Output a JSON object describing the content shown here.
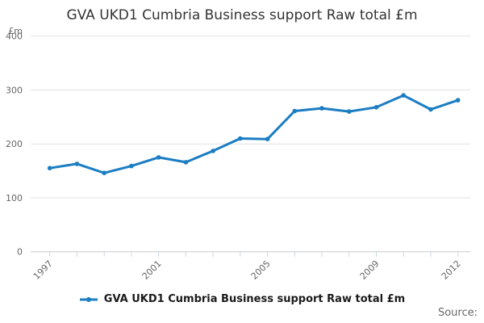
{
  "title": "GVA UKD1 Cumbria Business support Raw total £m",
  "y_axis_unit_label": "£m",
  "legend": {
    "label": "GVA UKD1 Cumbria Business support Raw total £m"
  },
  "source_label": "Source:",
  "colors": {
    "line": "#1b7dc2",
    "grid": "#e2e2e2",
    "axis": "#d0d0d0",
    "tick": "#c9d7e2",
    "text_muted": "#666666",
    "title_text": "#333333",
    "legend_text": "#1a1a1a"
  },
  "chart_data": {
    "type": "line",
    "x": [
      "1997",
      "1998",
      "1999",
      "2000",
      "2001",
      "2002",
      "2003",
      "2004",
      "2005",
      "2006",
      "2007",
      "2008",
      "2009",
      "2010",
      "2011",
      "2012"
    ],
    "series": [
      {
        "name": "GVA UKD1 Cumbria Business support Raw total £m",
        "values": [
          155,
          163,
          146,
          159,
          175,
          166,
          187,
          210,
          209,
          261,
          266,
          260,
          268,
          290,
          264,
          281
        ]
      }
    ],
    "title": "GVA UKD1 Cumbria Business support Raw total £m",
    "xlabel": "",
    "ylabel": "£m",
    "ylim": [
      0,
      400
    ],
    "y_ticks": [
      0,
      100,
      200,
      300,
      400
    ],
    "x_tick_labels_shown": [
      "1997",
      "2001",
      "2005",
      "2009",
      "2012"
    ],
    "grid": "horizontal",
    "legend_position": "bottom",
    "marker": "circle"
  }
}
